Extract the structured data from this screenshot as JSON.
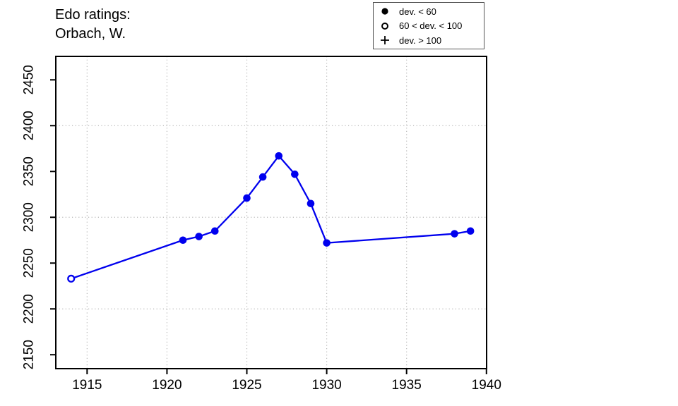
{
  "title": {
    "line1": "Edo ratings:",
    "line2": "Orbach, W."
  },
  "legend": {
    "items": [
      {
        "symbol": "filled-circle",
        "label": "dev. < 60"
      },
      {
        "symbol": "open-circle",
        "label": "60 < dev. < 100"
      },
      {
        "symbol": "plus",
        "label": "dev. > 100"
      }
    ]
  },
  "colors": {
    "line": "#0000EE",
    "grid": "#B8B8B8",
    "frame": "#000000",
    "text": "#000000"
  },
  "chart_data": {
    "type": "line",
    "title": "Edo ratings: Orbach, W.",
    "xlabel": "",
    "ylabel": "",
    "x": [
      1914,
      1921,
      1922,
      1923,
      1925,
      1926,
      1927,
      1928,
      1929,
      1930,
      1938,
      1939
    ],
    "y": [
      2233,
      2275,
      2279,
      2285,
      2321,
      2344,
      2367,
      2347,
      2315,
      2272,
      2282,
      2285
    ],
    "markers": [
      "open",
      "filled",
      "filled",
      "filled",
      "filled",
      "filled",
      "filled",
      "filled",
      "filled",
      "filled",
      "filled",
      "filled"
    ],
    "x_ticks": [
      1915,
      1920,
      1925,
      1930,
      1935,
      1940
    ],
    "y_ticks": [
      2150,
      2200,
      2250,
      2300,
      2350,
      2400,
      2450
    ],
    "x_gridlines": [
      1915,
      1920,
      1925,
      1930,
      1935,
      1940
    ],
    "y_gridlines": [
      2200,
      2300,
      2400
    ],
    "xlim": [
      1913.04,
      1940.01
    ],
    "ylim": [
      2134.8,
      2475.6
    ],
    "grid": true,
    "legend_position": "top-right"
  }
}
